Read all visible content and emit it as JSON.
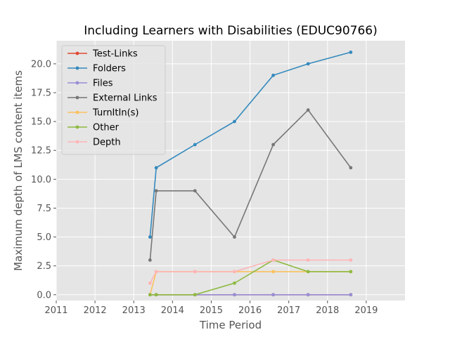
{
  "chart_data": {
    "type": "line",
    "title": "Including Learners with Disabilities (EDUC90766)",
    "xlabel": "Time Period",
    "ylabel": "Maximum depth of LMS content items",
    "xlim": [
      2011,
      2020
    ],
    "ylim": [
      -0.5,
      22
    ],
    "x_ticks": [
      2011,
      2012,
      2013,
      2014,
      2015,
      2016,
      2017,
      2018,
      2019
    ],
    "y_ticks": [
      0.0,
      2.5,
      5.0,
      7.5,
      10.0,
      12.5,
      15.0,
      17.5,
      20.0
    ],
    "y_tick_labels": [
      "0.0",
      "2.5",
      "5.0",
      "7.5",
      "10.0",
      "12.5",
      "15.0",
      "17.5",
      "20.0"
    ],
    "grid": true,
    "background": "#e5e5e5",
    "legend_position": "upper-left",
    "series": [
      {
        "name": "Test-Links",
        "color": "#e24a33",
        "x": [
          2013.42,
          2013.58,
          2014.58,
          2015.6,
          2016.6,
          2017.5,
          2018.6
        ],
        "y": [
          0,
          0,
          0,
          0,
          0,
          0,
          0
        ]
      },
      {
        "name": "Folders",
        "color": "#348abd",
        "x": [
          2013.42,
          2013.58,
          2014.58,
          2015.6,
          2016.6,
          2017.5,
          2018.6
        ],
        "y": [
          5,
          11,
          13,
          15,
          19,
          20,
          21
        ]
      },
      {
        "name": "Files",
        "color": "#988ed5",
        "x": [
          2013.42,
          2013.58,
          2014.58,
          2015.6,
          2016.6,
          2017.5,
          2018.6
        ],
        "y": [
          0,
          0,
          0,
          0,
          0,
          0,
          0
        ]
      },
      {
        "name": "External Links",
        "color": "#777777",
        "x": [
          2013.42,
          2013.58,
          2014.58,
          2015.6,
          2016.6,
          2017.5,
          2018.6
        ],
        "y": [
          3,
          9,
          9,
          5,
          13,
          16,
          11
        ]
      },
      {
        "name": "TurnItIn(s)",
        "color": "#fbc15e",
        "x": [
          2013.42,
          2013.58,
          2014.58,
          2015.6,
          2016.6,
          2017.5,
          2018.6
        ],
        "y": [
          0,
          2,
          2,
          2,
          2,
          2,
          2
        ]
      },
      {
        "name": "Other",
        "color": "#8eba42",
        "x": [
          2013.42,
          2013.58,
          2014.58,
          2015.6,
          2016.6,
          2017.5,
          2018.6
        ],
        "y": [
          0,
          0,
          0,
          1,
          3,
          2,
          2
        ]
      },
      {
        "name": "Depth",
        "color": "#ffb5b8",
        "x": [
          2013.42,
          2013.58,
          2014.58,
          2015.6,
          2016.6,
          2017.5,
          2018.6
        ],
        "y": [
          1,
          2,
          2,
          2,
          3,
          3,
          3
        ]
      }
    ]
  }
}
